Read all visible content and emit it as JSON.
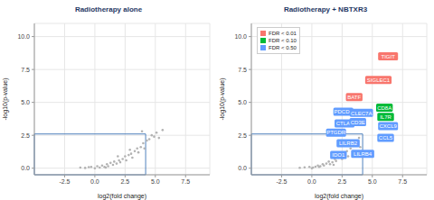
{
  "chart_data": [
    {
      "type": "scatter",
      "title": "Radiotherapy alone",
      "x_label": "log2(fold change)",
      "y_label": "-log10(p-value)",
      "xlim": [
        -5,
        9.5
      ],
      "ylim": [
        -0.5,
        11
      ],
      "xticks": [
        -2.5,
        {
          "value": 0,
          "label": "0.0"
        },
        2.5,
        {
          "value": 5,
          "label": "5.0"
        },
        7.5
      ],
      "yticks": [
        {
          "value": 0,
          "label": "0.0"
        },
        2.5,
        {
          "value": 5,
          "label": "5.0"
        },
        7.5,
        {
          "value": 10,
          "label": "10.0"
        }
      ],
      "grid": true,
      "threshold_box": {
        "x": [
          -5,
          4.2
        ],
        "y": [
          -0.5,
          2.6
        ],
        "color": "#4f81bd"
      },
      "points": {
        "color": "#b3b3b3",
        "x": [
          -1.2,
          -0.8,
          -0.5,
          -0.3,
          0,
          0.2,
          0.4,
          0.6,
          0.8,
          1.0,
          1.1,
          1.3,
          1.5,
          1.6,
          1.8,
          2.0,
          2.1,
          2.3,
          2.5,
          2.6,
          2.8,
          3.0,
          3.1,
          3.3,
          3.5,
          3.6,
          3.8,
          4.0,
          4.1,
          4.3,
          4.5,
          4.7,
          4.9,
          5.1,
          5.3,
          5.6,
          3.9,
          2.9,
          1.9,
          0.9
        ],
        "y": [
          0.05,
          0.02,
          0.08,
          0.1,
          0.0,
          0.15,
          0.05,
          0.2,
          0.1,
          0.3,
          0.15,
          0.4,
          0.25,
          0.5,
          0.35,
          0.6,
          0.45,
          0.7,
          0.9,
          0.6,
          1.0,
          1.1,
          0.8,
          1.3,
          1.5,
          1.2,
          1.6,
          1.9,
          1.5,
          2.1,
          2.2,
          2.5,
          2.4,
          2.7,
          2.3,
          2.9,
          2.8,
          1.4,
          0.9,
          0.05
        ]
      }
    },
    {
      "type": "scatter",
      "title": "Radiotherapy + NBTXR3",
      "x_label": "log2(fold change)",
      "y_label": "-log10(p-value)",
      "xlim": [
        -5,
        9.5
      ],
      "ylim": [
        -0.5,
        11
      ],
      "xticks": [
        -2.5,
        {
          "value": 0,
          "label": "0.0"
        },
        2.5,
        {
          "value": 5,
          "label": "5.0"
        },
        7.5
      ],
      "yticks": [
        {
          "value": 0,
          "label": "0.0"
        },
        2.5,
        {
          "value": 5,
          "label": "5.0"
        },
        7.5,
        {
          "value": 10,
          "label": "10.0"
        }
      ],
      "grid": true,
      "legend": "upper left",
      "threshold_box": {
        "x": [
          -5,
          4.2
        ],
        "y": [
          -0.5,
          2.6
        ],
        "color": "#4f81bd"
      },
      "points": {
        "color": "#b3b3b3",
        "x": [
          -1.0,
          -0.6,
          -0.2,
          0.1,
          0.3,
          0.5,
          0.7,
          0.9,
          1.2,
          1.4,
          1.7,
          1.9,
          2.2,
          2.4,
          2.7,
          2.9,
          3.2,
          3.4,
          3.7,
          3.9,
          0.0,
          0.6,
          1.0,
          1.5,
          2.0,
          2.5,
          3.0,
          3.5,
          4.0,
          1.8
        ],
        "y": [
          0.03,
          0.06,
          0.1,
          0.05,
          0.12,
          0.2,
          0.15,
          0.3,
          0.35,
          0.5,
          0.45,
          0.7,
          0.8,
          1.0,
          1.1,
          1.3,
          1.5,
          1.7,
          2.0,
          2.3,
          0.0,
          0.1,
          0.2,
          0.3,
          0.55,
          0.7,
          0.9,
          1.2,
          1.6,
          0.25
        ]
      },
      "groups": [
        {
          "name": "FDR < 0.01",
          "color": "#f8766d"
        },
        {
          "name": "FDR < 0.10",
          "color": "#00ba38"
        },
        {
          "name": "FDR < 0.50",
          "color": "#619cff"
        }
      ],
      "labeled_points": {
        "labels": [
          "TIGIT",
          "SIGLEC1",
          "BATF",
          "CD8A",
          "IL7R",
          "PDCD1",
          "CLEC7A",
          "CTLA4",
          "CD3E",
          "CXCL9",
          "PTGDR",
          "CCL5",
          "LILRB2",
          "LILRB4",
          "IDO1"
        ],
        "x": [
          6.3,
          5.5,
          3.5,
          6.0,
          6.1,
          2.6,
          4.1,
          2.7,
          3.8,
          6.3,
          2.0,
          6.1,
          3.0,
          4.2,
          2.2
        ],
        "y": [
          8.5,
          6.7,
          5.4,
          4.6,
          3.9,
          4.3,
          4.2,
          3.4,
          3.5,
          3.2,
          2.7,
          2.3,
          1.9,
          1.1,
          1.0
        ],
        "group": [
          0,
          0,
          0,
          1,
          1,
          2,
          2,
          2,
          2,
          2,
          2,
          2,
          2,
          2,
          2
        ]
      }
    }
  ]
}
